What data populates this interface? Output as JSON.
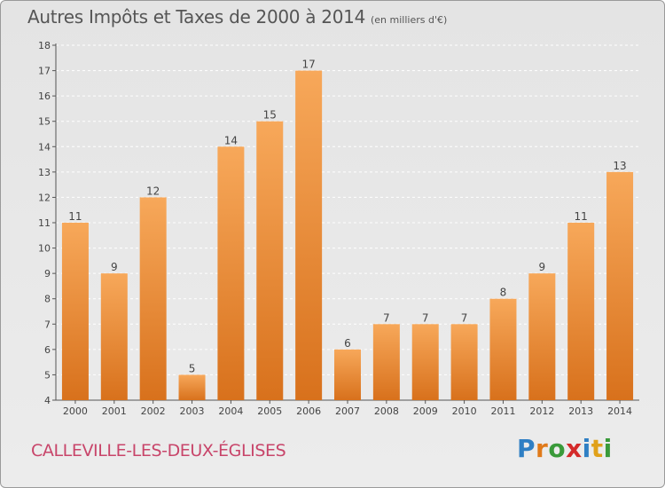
{
  "header": {
    "title": "Autres Impôts et Taxes de 2000 à 2014",
    "subtitle": "(en milliers d'€)"
  },
  "footer": {
    "commune": "CALLEVILLE-LES-DEUX-ÉGLISES"
  },
  "brand": {
    "letters": [
      "P",
      "r",
      "o",
      "x",
      "i",
      "t",
      "i"
    ],
    "colors": [
      "#2f7fc4",
      "#e07a1a",
      "#3a9a3a",
      "#d42a2a",
      "#2f7fc4",
      "#e0a11a",
      "#3a9a3a"
    ]
  },
  "chart_data": {
    "type": "bar",
    "title": "Autres Impôts et Taxes de 2000 à 2014",
    "subtitle": "(en milliers d'€)",
    "categories": [
      "2000",
      "2001",
      "2002",
      "2003",
      "2004",
      "2005",
      "2006",
      "2007",
      "2008",
      "2009",
      "2010",
      "2011",
      "2012",
      "2013",
      "2014"
    ],
    "values": [
      11,
      9,
      12,
      5,
      14,
      15,
      17,
      6,
      7,
      7,
      7,
      8,
      9,
      11,
      13
    ],
    "value_labels": [
      "11",
      "9",
      "12",
      "5",
      "14",
      "15",
      "17",
      "6",
      "7",
      "7",
      "7",
      "8",
      "9",
      "11",
      "13"
    ],
    "ylim": [
      4,
      18
    ],
    "yticks": [
      4,
      5,
      6,
      7,
      8,
      9,
      10,
      11,
      12,
      13,
      14,
      15,
      16,
      17,
      18
    ],
    "ytick_labels": [
      "4",
      "5",
      "6",
      "7",
      "8",
      "9",
      "10",
      "11",
      "12",
      "13",
      "14",
      "15",
      "16",
      "17",
      "18"
    ],
    "xlabel": "",
    "ylabel": "",
    "grid": "horizontal dashed",
    "bar_color_top": "#f7a85a",
    "bar_color_bottom": "#d8711c"
  }
}
